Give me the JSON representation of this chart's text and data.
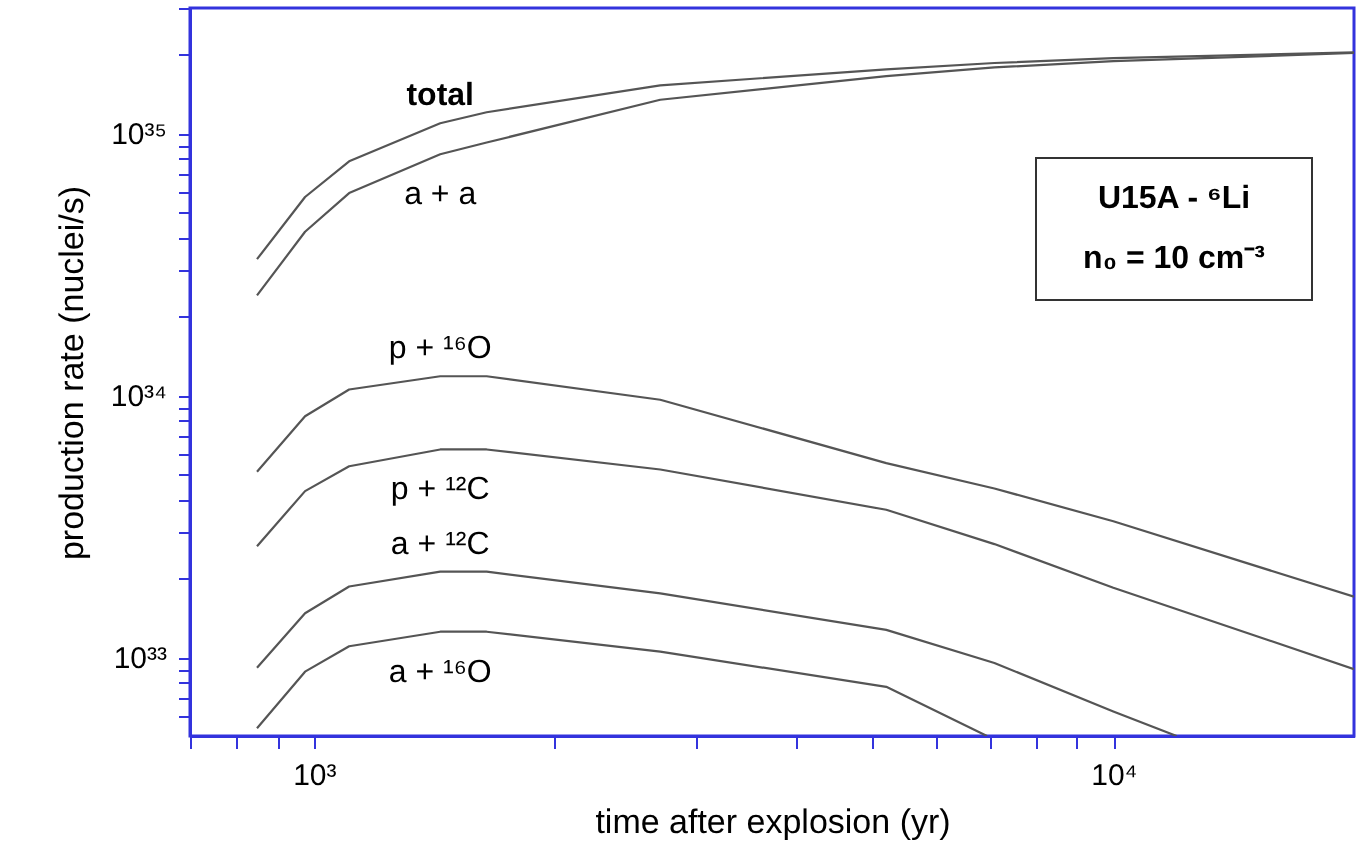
{
  "chart_data": {
    "type": "line",
    "xlabel": "time after explosion (yr)",
    "ylabel": "production rate (nuclei/s)",
    "log": "xy",
    "xlim": [
      700,
      20000
    ],
    "ylim": [
      5e+32,
      3e+35
    ],
    "xticks": [
      {
        "value": 700,
        "label": null
      },
      {
        "value": 800,
        "label": null
      },
      {
        "value": 900,
        "label": null
      },
      {
        "value": 1000,
        "label": "10³"
      },
      {
        "value": 2000,
        "label": null
      },
      {
        "value": 3000,
        "label": null
      },
      {
        "value": 4000,
        "label": null
      },
      {
        "value": 5000,
        "label": null
      },
      {
        "value": 6000,
        "label": null
      },
      {
        "value": 7000,
        "label": null
      },
      {
        "value": 8000,
        "label": null
      },
      {
        "value": 9000,
        "label": null
      },
      {
        "value": 10000,
        "label": "10⁴"
      }
    ],
    "yticks": [
      {
        "value": 6e+32,
        "label": null
      },
      {
        "value": 7e+32,
        "label": null
      },
      {
        "value": 8e+32,
        "label": null
      },
      {
        "value": 9e+32,
        "label": null
      },
      {
        "value": 1e+33,
        "label": "10³³"
      },
      {
        "value": 2e+33,
        "label": null
      },
      {
        "value": 3e+33,
        "label": null
      },
      {
        "value": 4e+33,
        "label": null
      },
      {
        "value": 5e+33,
        "label": null
      },
      {
        "value": 6e+33,
        "label": null
      },
      {
        "value": 7e+33,
        "label": null
      },
      {
        "value": 8e+33,
        "label": null
      },
      {
        "value": 9e+33,
        "label": null
      },
      {
        "value": 1e+34,
        "label": "10³⁴"
      },
      {
        "value": 2e+34,
        "label": null
      },
      {
        "value": 3e+34,
        "label": null
      },
      {
        "value": 4e+34,
        "label": null
      },
      {
        "value": 5e+34,
        "label": null
      },
      {
        "value": 6e+34,
        "label": null
      },
      {
        "value": 7e+34,
        "label": null
      },
      {
        "value": 8e+34,
        "label": null
      },
      {
        "value": 9e+34,
        "label": null
      },
      {
        "value": 1e+35,
        "label": "10³⁵"
      },
      {
        "value": 2e+35,
        "label": null
      },
      {
        "value": 3e+35,
        "label": null
      }
    ],
    "x": [
      849,
      975,
      1107,
      1439,
      1645,
      2712,
      5200,
      7100,
      10000,
      20000
    ],
    "series": [
      {
        "name": "total",
        "color": "#555555",
        "values": [
          3.3e+34,
          5.7e+34,
          7.8e+34,
          1.09e+35,
          1.2e+35,
          1.52e+35,
          1.75e+35,
          1.85e+35,
          1.93e+35,
          2.03e+35
        ]
      },
      {
        "name": "a + a",
        "color": "#555555",
        "values": [
          2.4e+34,
          4.2e+34,
          5.9e+34,
          8.3e+34,
          9.2e+34,
          1.34e+35,
          1.65e+35,
          1.78e+35,
          1.88e+35,
          2.02e+35
        ]
      },
      {
        "name": "p + ¹⁶O",
        "color": "#555555",
        "values": [
          5.1e+33,
          8.3e+33,
          1.05e+34,
          1.18e+34,
          1.18e+34,
          9.6e+33,
          5.5e+33,
          4.4e+33,
          3.3e+33,
          1.7e+33
        ]
      },
      {
        "name": "p + ¹²C",
        "color": "#555555",
        "values": [
          2.65e+33,
          4.3e+33,
          5.35e+33,
          6.2e+33,
          6.2e+33,
          5.2e+33,
          3.65e+33,
          2.7e+33,
          1.84e+33,
          9e+32
        ]
      },
      {
        "name": "a + ¹²C",
        "color": "#555555",
        "x": [
          849,
          975,
          1107,
          1439,
          1645,
          2712,
          5200,
          7100,
          10000,
          12000
        ],
        "values": [
          9.1e+32,
          1.47e+33,
          1.86e+33,
          2.12e+33,
          2.12e+33,
          1.75e+33,
          1.27e+33,
          9.5e+32,
          6.2e+32,
          5e+32
        ]
      },
      {
        "name": "a + ¹⁶O",
        "color": "#555555",
        "x": [
          849,
          975,
          1107,
          1439,
          1645,
          2712,
          5200,
          6950
        ],
        "values": [
          5.35e+32,
          8.8e+32,
          1.1e+33,
          1.25e+33,
          1.25e+33,
          1.05e+33,
          7.7e+32,
          5e+32
        ]
      }
    ],
    "annotations": [
      "U15A - ⁶Li",
      "n₀ = 10 cm⁻³"
    ]
  }
}
